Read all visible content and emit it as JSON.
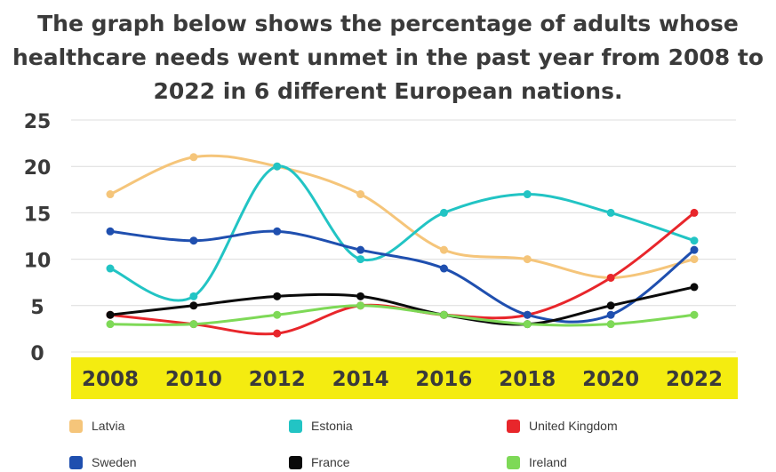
{
  "title_lines": [
    "The graph below shows the percentage of adults whose",
    "healthcare needs went unmet in the past year from 2008 to",
    "2022 in 6 different European nations."
  ],
  "chart_data": {
    "type": "line",
    "title": "The graph below shows the percentage of adults whose healthcare needs went unmet in the past year from 2008 to 2022 in 6 different European nations.",
    "xlabel": "",
    "ylabel": "",
    "x": [
      "2008",
      "2010",
      "2012",
      "2014",
      "2016",
      "2018",
      "2020",
      "2022"
    ],
    "ylim": [
      0,
      25
    ],
    "yticks": [
      "0",
      "5",
      "10",
      "15",
      "20",
      "25"
    ],
    "grid": true,
    "legend_position": "bottom",
    "x_axis_band_color": "#f4ec10",
    "series": [
      {
        "name": "Latvia",
        "color": "#f5c57a",
        "values": [
          17,
          21,
          20,
          17,
          11,
          10,
          8,
          10
        ]
      },
      {
        "name": "Estonia",
        "color": "#22c4c4",
        "values": [
          9,
          6,
          20,
          10,
          15,
          17,
          15,
          12
        ]
      },
      {
        "name": "United Kingdom",
        "color": "#e8262b",
        "values": [
          4,
          3,
          2,
          5,
          4,
          4,
          8,
          15
        ]
      },
      {
        "name": "Sweden",
        "color": "#1f4faf",
        "values": [
          13,
          12,
          13,
          11,
          9,
          4,
          4,
          11
        ]
      },
      {
        "name": "France",
        "color": "#0a0a0a",
        "values": [
          4,
          5,
          6,
          6,
          4,
          3,
          5,
          7
        ]
      },
      {
        "name": "Ireland",
        "color": "#7ed957",
        "values": [
          3,
          3,
          4,
          5,
          4,
          3,
          3,
          4
        ]
      }
    ]
  }
}
